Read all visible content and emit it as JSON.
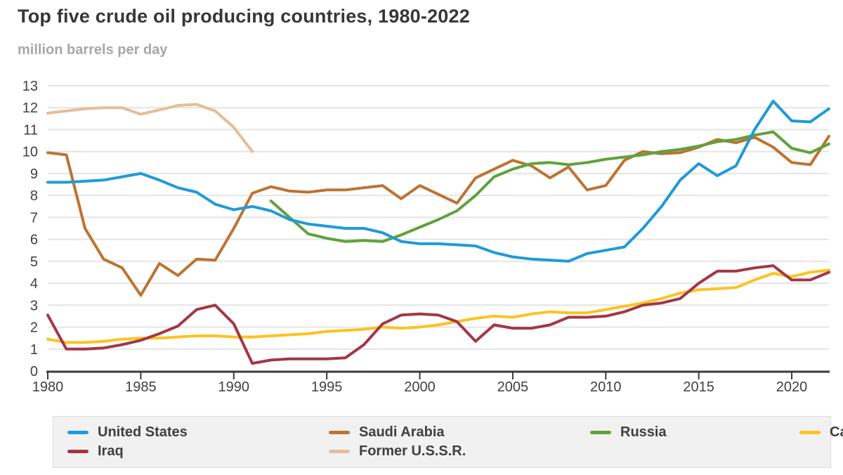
{
  "header": {
    "title": "Top five crude oil producing countries, 1980-2022",
    "subtitle": "million barrels per day"
  },
  "chart_data": {
    "type": "line",
    "title": "Top five crude oil producing countries, 1980-2022",
    "ylabel": "million barrels per day",
    "xlabel": "",
    "xlim": [
      1980,
      2022
    ],
    "ylim": [
      0,
      13
    ],
    "x_ticks": [
      1980,
      1985,
      1990,
      1995,
      2000,
      2005,
      2010,
      2015,
      2020
    ],
    "y_ticks": [
      0,
      1,
      2,
      3,
      4,
      5,
      6,
      7,
      8,
      9,
      10,
      11,
      12,
      13
    ],
    "grid": true,
    "legend_position": "bottom",
    "colors": {
      "axis": "#3a3a3a",
      "gridline": "#e4e4e4",
      "tick_label": "#414042"
    },
    "series": [
      {
        "name": "United States",
        "color": "#1f9bd8",
        "start_year": 1980,
        "end_year": 2022,
        "values": [
          8.6,
          8.6,
          8.65,
          8.7,
          8.85,
          9.0,
          8.7,
          8.35,
          8.15,
          7.6,
          7.35,
          7.5,
          7.3,
          6.9,
          6.7,
          6.6,
          6.5,
          6.5,
          6.3,
          5.9,
          5.8,
          5.8,
          5.75,
          5.7,
          5.4,
          5.2,
          5.1,
          5.05,
          5.0,
          5.35,
          5.5,
          5.65,
          6.5,
          7.5,
          8.7,
          9.45,
          8.9,
          9.35,
          11.0,
          12.3,
          11.4,
          11.35,
          11.95
        ]
      },
      {
        "name": "Saudi Arabia",
        "color": "#bd7331",
        "start_year": 1980,
        "end_year": 2022,
        "values": [
          9.95,
          9.85,
          6.5,
          5.1,
          4.7,
          3.45,
          4.9,
          4.35,
          5.1,
          5.05,
          6.5,
          8.1,
          8.4,
          8.2,
          8.15,
          8.25,
          8.25,
          8.35,
          8.45,
          7.85,
          8.45,
          8.05,
          7.65,
          8.8,
          9.2,
          9.6,
          9.35,
          8.8,
          9.3,
          8.25,
          8.45,
          9.6,
          10.0,
          9.9,
          9.95,
          10.2,
          10.55,
          10.4,
          10.65,
          10.2,
          9.5,
          9.4,
          10.7
        ]
      },
      {
        "name": "Russia",
        "color": "#5fa23c",
        "start_year": 1992,
        "end_year": 2022,
        "values": [
          7.75,
          7.0,
          6.25,
          6.05,
          5.9,
          5.95,
          5.9,
          6.2,
          6.55,
          6.9,
          7.3,
          8.0,
          8.85,
          9.2,
          9.45,
          9.5,
          9.4,
          9.5,
          9.65,
          9.75,
          9.85,
          10.0,
          10.1,
          10.25,
          10.45,
          10.55,
          10.75,
          10.9,
          10.15,
          9.95,
          10.35
        ]
      },
      {
        "name": "Canada",
        "color": "#fcc320",
        "start_year": 1980,
        "end_year": 2022,
        "values": [
          1.45,
          1.3,
          1.3,
          1.35,
          1.45,
          1.5,
          1.5,
          1.55,
          1.6,
          1.6,
          1.55,
          1.55,
          1.6,
          1.65,
          1.7,
          1.8,
          1.85,
          1.9,
          2.0,
          1.95,
          2.0,
          2.1,
          2.25,
          2.4,
          2.5,
          2.45,
          2.6,
          2.7,
          2.65,
          2.65,
          2.8,
          2.95,
          3.1,
          3.3,
          3.55,
          3.7,
          3.75,
          3.8,
          4.15,
          4.45,
          4.3,
          4.5,
          4.6
        ]
      },
      {
        "name": "Iraq",
        "color": "#a23747",
        "start_year": 1980,
        "end_year": 2022,
        "values": [
          2.55,
          1.0,
          1.0,
          1.05,
          1.2,
          1.4,
          1.7,
          2.05,
          2.8,
          3.0,
          2.15,
          0.35,
          0.5,
          0.55,
          0.55,
          0.55,
          0.6,
          1.2,
          2.15,
          2.55,
          2.6,
          2.55,
          2.25,
          1.35,
          2.1,
          1.95,
          1.95,
          2.1,
          2.45,
          2.45,
          2.5,
          2.7,
          3.0,
          3.1,
          3.3,
          4.0,
          4.55,
          4.55,
          4.7,
          4.8,
          4.15,
          4.15,
          4.5
        ]
      },
      {
        "name": "Former U.S.S.R.",
        "color": "#e5bd97",
        "start_year": 1980,
        "end_year": 1991,
        "values": [
          11.75,
          11.85,
          11.95,
          12.0,
          12.0,
          11.7,
          11.9,
          12.1,
          12.15,
          11.85,
          11.1,
          10.0
        ]
      }
    ],
    "draw_order": [
      "Former U.S.S.R.",
      "Saudi Arabia",
      "Russia",
      "Canada",
      "Iraq",
      "United States"
    ]
  }
}
